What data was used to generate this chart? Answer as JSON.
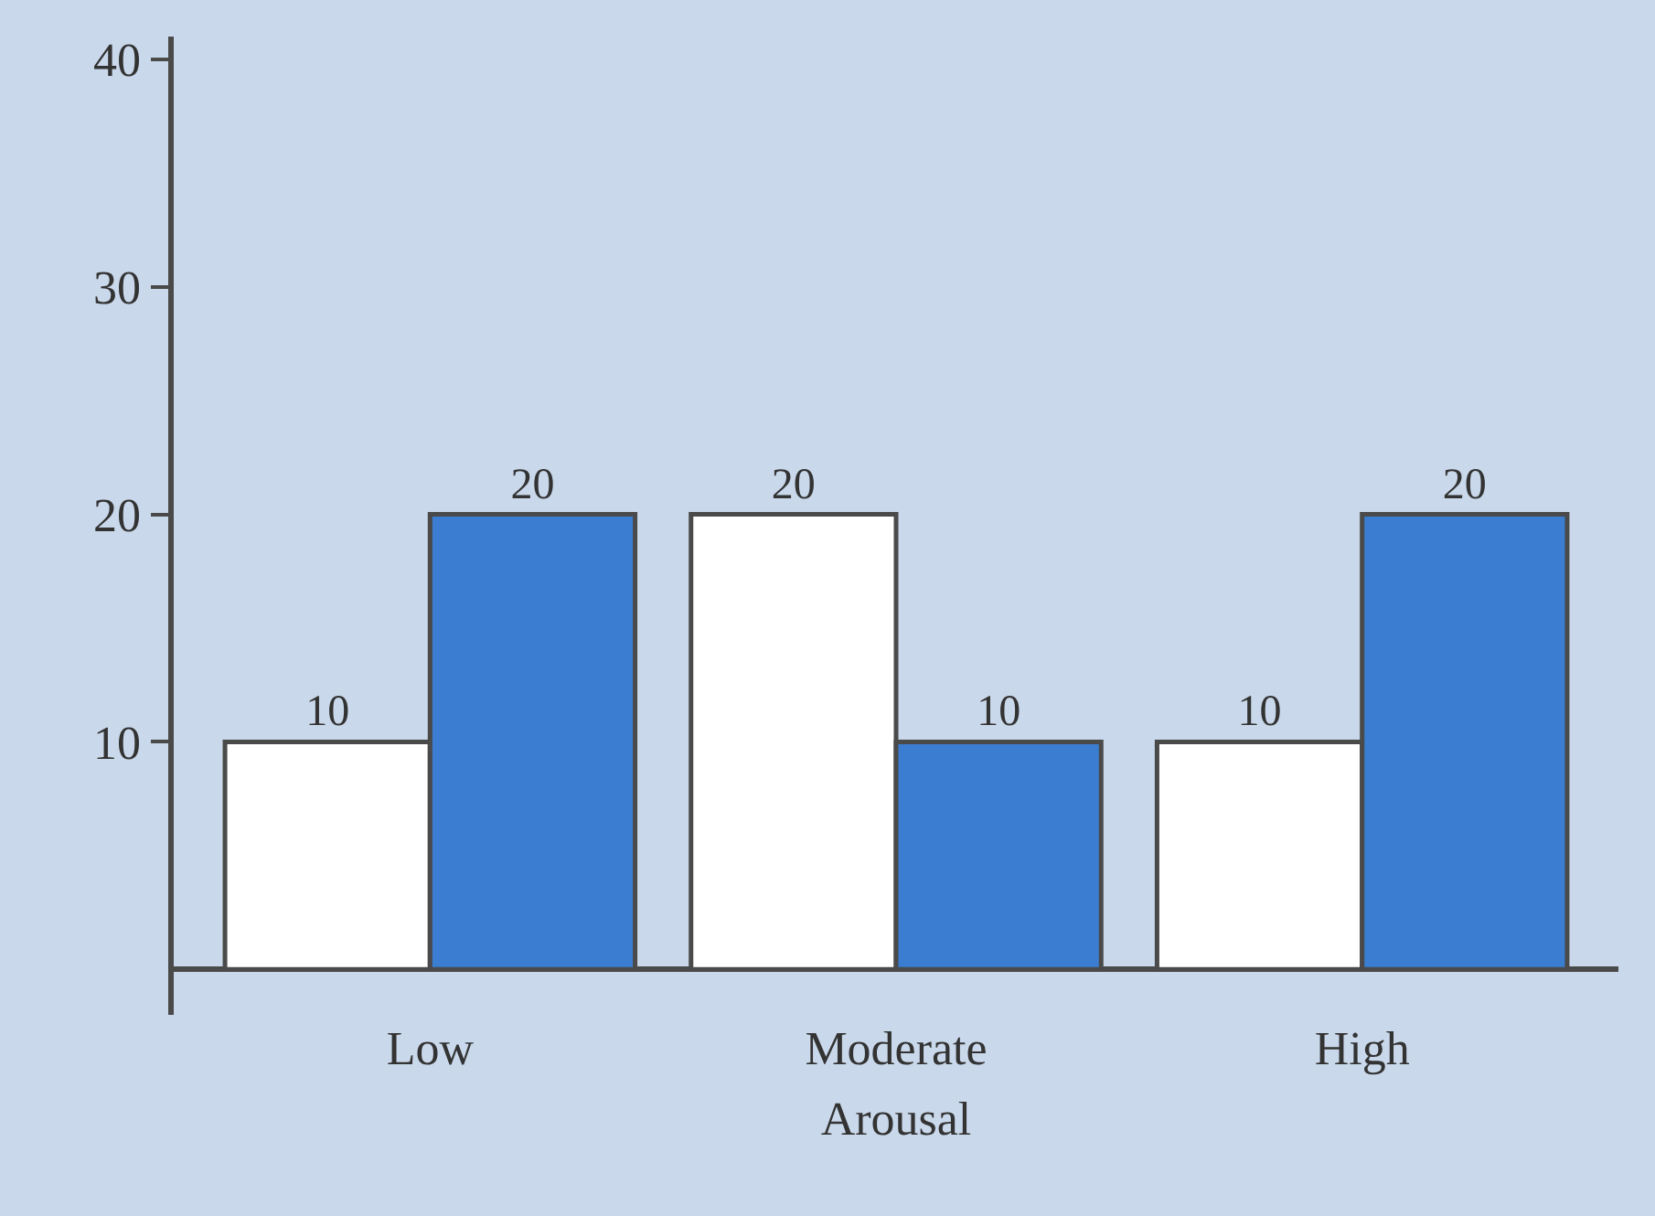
{
  "chart_data": {
    "type": "bar",
    "xlabel": "Arousal",
    "categories": [
      "Low",
      "Moderate",
      "High"
    ],
    "series": [
      {
        "color": "#ffffff",
        "values": [
          10,
          20,
          10
        ]
      },
      {
        "color": "#3b7dd0",
        "values": [
          20,
          10,
          20
        ]
      }
    ],
    "ylim": [
      -2,
      41
    ],
    "yticks": [
      10,
      20,
      30,
      40
    ],
    "data_labels": true,
    "grid": false,
    "legend": false
  }
}
